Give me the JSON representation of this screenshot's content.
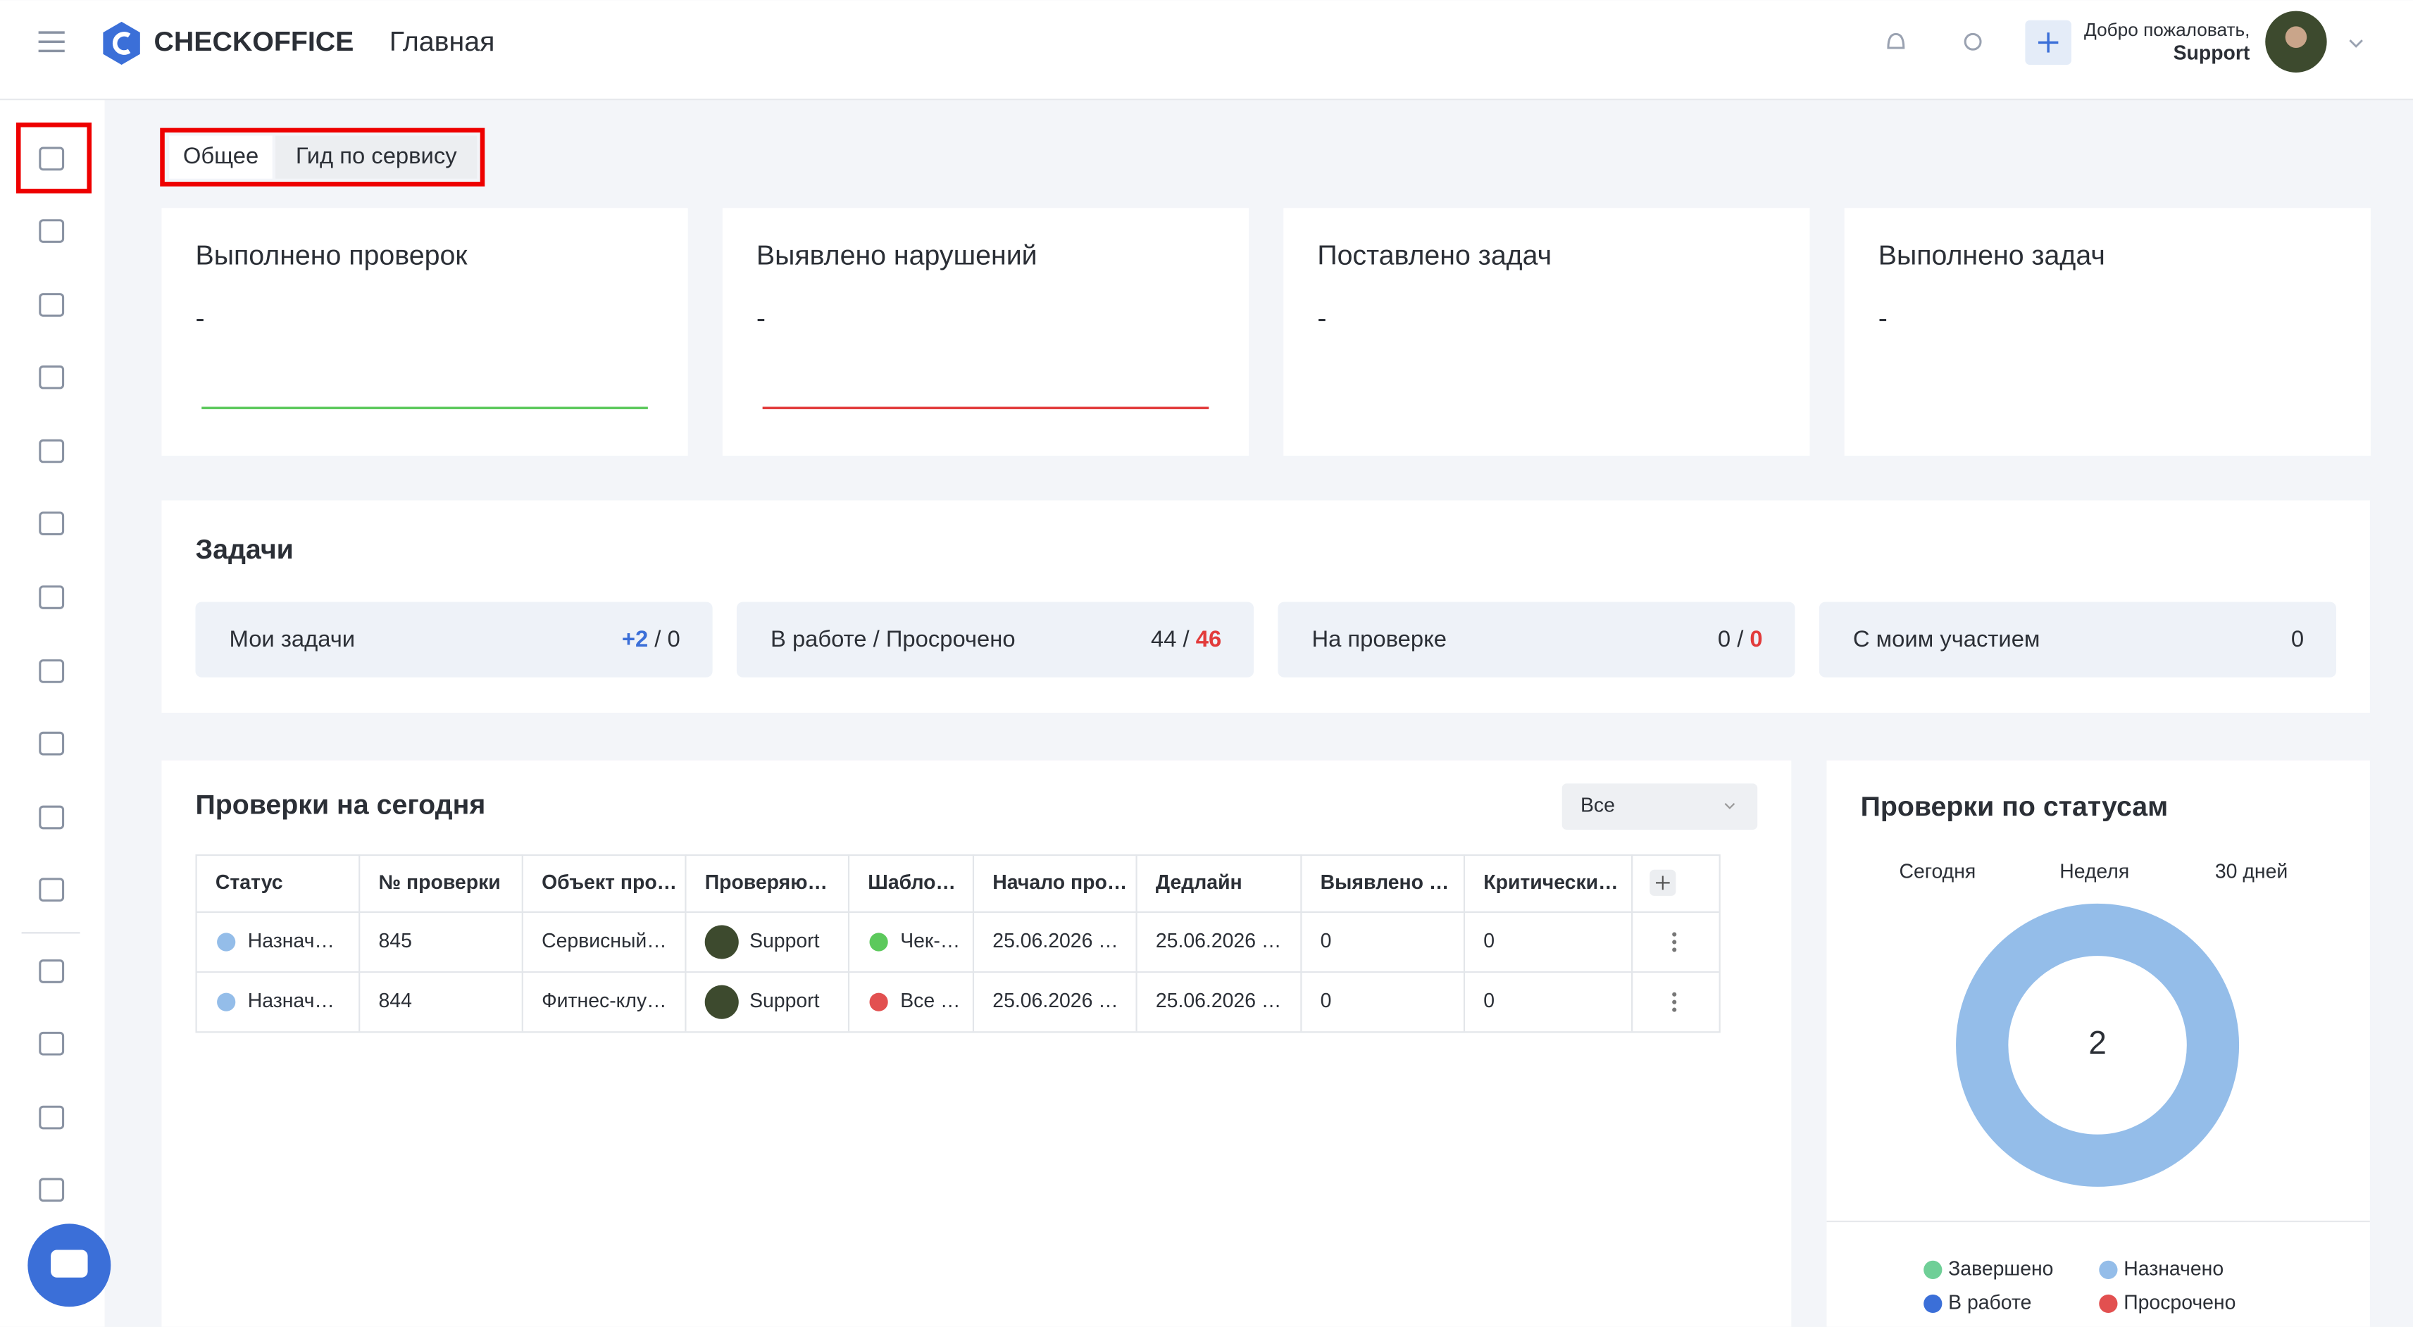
{
  "header": {
    "logo": "CHECKOFFICE",
    "page_title": "Главная",
    "welcome": "Добро пожаловать,",
    "user": "Support"
  },
  "tabs": [
    "Общее",
    "Гид по сервису"
  ],
  "kpi_cards": [
    {
      "title": "Выполнено проверок",
      "value": "-",
      "line_color": "#5cc95c"
    },
    {
      "title": "Выявлено нарушений",
      "value": "-",
      "line_color": "#e23b3b"
    },
    {
      "title": "Поставлено задач",
      "value": "-"
    },
    {
      "title": "Выполнено задач",
      "value": "-"
    }
  ],
  "tasks": {
    "title": "Задачи",
    "separator": "/",
    "items": [
      {
        "label": "Мои задачи",
        "values": [
          {
            "text": "+2",
            "color": "#3b6fd8"
          },
          {
            "text": "0"
          }
        ]
      },
      {
        "label": "В работе / Просрочено",
        "values": [
          {
            "text": "44"
          },
          {
            "text": "46",
            "color": "#e23b3b"
          }
        ]
      },
      {
        "label": "На проверке",
        "values": [
          {
            "text": "0"
          },
          {
            "text": "0",
            "color": "#e23b3b"
          }
        ]
      },
      {
        "label": "С моим участием",
        "values": [
          {
            "text": "0"
          }
        ]
      }
    ]
  },
  "checks_today": {
    "title": "Проверки на сегодня",
    "filter": "Все",
    "columns": [
      "Статус",
      "№ проверки",
      "Объект про…",
      "Проверяю…",
      "Шабло…",
      "Начало про…",
      "Дедлайн",
      "Выявлено …",
      "Критически…"
    ],
    "rows": [
      {
        "status_color": "#94bde9",
        "template_color": "#5cc95c",
        "cells": [
          "Назнач…",
          "845",
          "Сервисный…",
          "Support",
          "Чек-…",
          "25.06.2026 …",
          "25.06.2026 …",
          "0",
          "0"
        ]
      },
      {
        "status_color": "#94bde9",
        "template_color": "#e25050",
        "cells": [
          "Назнач…",
          "844",
          "Фитнес-клу…",
          "Support",
          "Все …",
          "25.06.2026 …",
          "25.06.2026 …",
          "0",
          "0"
        ]
      }
    ]
  },
  "status_chart": {
    "type": "pie",
    "title": "Проверки по статусам",
    "periods": [
      "Сегодня",
      "Неделя",
      "30 дней"
    ],
    "total": 2,
    "series": [
      {
        "name": "Завершено",
        "color": "#6fcf97",
        "value": 0
      },
      {
        "name": "Назначено",
        "color": "#94bde9",
        "value": 2
      },
      {
        "name": "В работе",
        "color": "#3b6fd8",
        "value": 0
      },
      {
        "name": "Просрочено",
        "color": "#e25050",
        "value": 0
      }
    ]
  }
}
